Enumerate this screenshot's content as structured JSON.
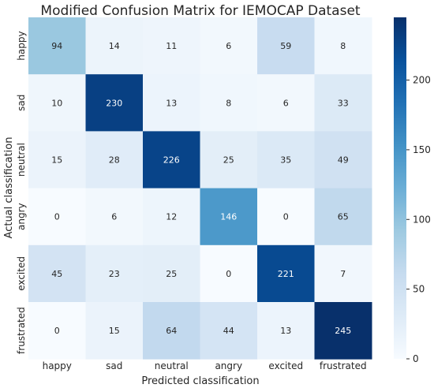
{
  "chart_data": {
    "type": "heatmap",
    "title": "Modified Confusion Matrix for IEMOCAP Dataset",
    "xlabel": "Predicted classification",
    "ylabel": "Actual classification",
    "x_categories": [
      "happy",
      "sad",
      "neutral",
      "angry",
      "excited",
      "frustrated"
    ],
    "y_categories": [
      "happy",
      "sad",
      "neutral",
      "angry",
      "excited",
      "frustrated"
    ],
    "values": [
      [
        94,
        14,
        11,
        6,
        59,
        8
      ],
      [
        10,
        230,
        13,
        8,
        6,
        33
      ],
      [
        15,
        28,
        226,
        25,
        35,
        49
      ],
      [
        0,
        6,
        12,
        146,
        0,
        65
      ],
      [
        45,
        23,
        25,
        0,
        221,
        7
      ],
      [
        0,
        15,
        64,
        44,
        13,
        245
      ]
    ],
    "colormap": "Blues",
    "color_range": [
      0,
      245
    ],
    "colorbar_ticks": [
      0,
      50,
      100,
      150,
      200
    ],
    "grid": false
  }
}
